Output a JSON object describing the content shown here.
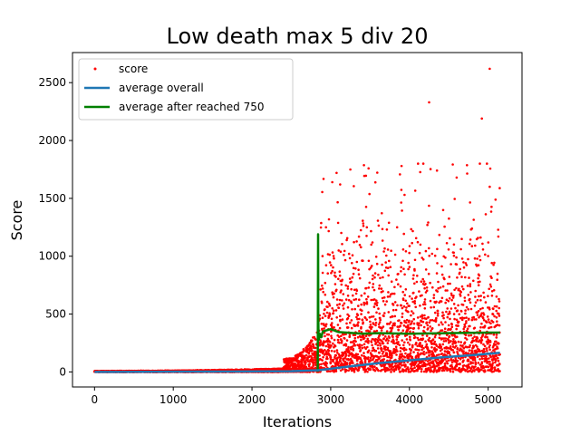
{
  "chart_data": {
    "type": "scatter",
    "title": "Low death max 5 div 20",
    "xlabel": "Iterations",
    "ylabel": "Score",
    "xlim": [
      -280,
      5430
    ],
    "ylim": [
      -130,
      2760
    ],
    "xticks": [
      0,
      1000,
      2000,
      3000,
      4000,
      5000
    ],
    "yticks": [
      0,
      500,
      1000,
      1500,
      2000,
      2500
    ],
    "grid": false,
    "legend_position": "top-left",
    "series": [
      {
        "name": "score",
        "kind": "points",
        "color": "#ff0000",
        "n_points": 5150,
        "segments": [
          {
            "x_from": 0,
            "x_to": 2400,
            "y_min": 0,
            "y_max": 30
          },
          {
            "x_from": 2400,
            "x_to": 2850,
            "y_min": 0,
            "y_max": 380
          },
          {
            "x_from": 2850,
            "x_to": 5150,
            "y_min": 0,
            "y_max": 1800,
            "median": 250
          }
        ],
        "notable_points": [
          {
            "x": 5020,
            "y": 2620
          },
          {
            "x": 4250,
            "y": 2330
          },
          {
            "x": 4920,
            "y": 2190
          },
          {
            "x": 3900,
            "y": 1780
          },
          {
            "x": 4350,
            "y": 1740
          },
          {
            "x": 4600,
            "y": 1680
          },
          {
            "x": 3020,
            "y": 1640
          },
          {
            "x": 3120,
            "y": 1620
          },
          {
            "x": 5020,
            "y": 1600
          }
        ]
      },
      {
        "name": "average overall",
        "kind": "line",
        "color": "#1f77b4",
        "x": [
          0,
          1000,
          2000,
          2500,
          2850,
          3200,
          3600,
          4000,
          4400,
          4800,
          5150
        ],
        "y": [
          0,
          2,
          4,
          6,
          15,
          45,
          75,
          100,
          125,
          145,
          165
        ]
      },
      {
        "name": "average after reached 750",
        "kind": "line",
        "color": "#008000",
        "x": [
          2835,
          2840,
          2842,
          2845,
          2850,
          2860,
          2880,
          2900,
          2950,
          3000,
          3100,
          3200,
          3400,
          3600,
          4000,
          4500,
          5000,
          5150
        ],
        "y": [
          0,
          1190,
          500,
          290,
          280,
          330,
          300,
          350,
          360,
          370,
          345,
          340,
          330,
          335,
          330,
          335,
          340,
          340
        ]
      }
    ]
  }
}
